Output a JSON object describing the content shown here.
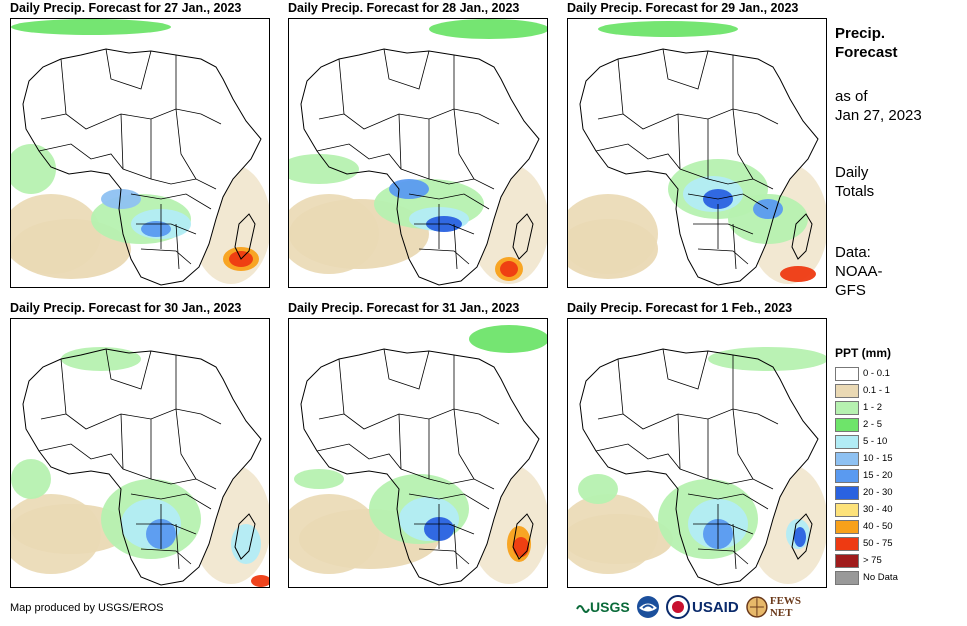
{
  "panels": [
    {
      "title": "Daily Precip. Forecast for 27 Jan., 2023"
    },
    {
      "title": "Daily Precip. Forecast for 28 Jan., 2023"
    },
    {
      "title": "Daily Precip. Forecast for 29 Jan., 2023"
    },
    {
      "title": "Daily Precip. Forecast for 30 Jan., 2023"
    },
    {
      "title": "Daily Precip. Forecast for 31 Jan., 2023"
    },
    {
      "title": "Daily Precip. Forecast for 1 Feb., 2023"
    }
  ],
  "side": {
    "title_line1": "Precip.",
    "title_line2": "Forecast",
    "asof_line1": "as of",
    "asof_line2": "Jan 27, 2023",
    "totals_line1": "Daily",
    "totals_line2": "Totals",
    "data_line1": "Data:",
    "data_line2": "NOAA-",
    "data_line3": "GFS"
  },
  "legend": {
    "title": "PPT (mm)",
    "items": [
      {
        "label": "0 - 0.1",
        "color": "#ffffff"
      },
      {
        "label": "0.1 - 1",
        "color": "#ead9b4"
      },
      {
        "label": "1 - 2",
        "color": "#b6f1b0"
      },
      {
        "label": "2 - 5",
        "color": "#6ee46a"
      },
      {
        "label": "5 - 10",
        "color": "#b2ecf5"
      },
      {
        "label": "10 - 15",
        "color": "#8ec1f2"
      },
      {
        "label": "15 - 20",
        "color": "#5a9af0"
      },
      {
        "label": "20 - 30",
        "color": "#2a62e0"
      },
      {
        "label": "30 - 40",
        "color": "#fde27a"
      },
      {
        "label": "40 - 50",
        "color": "#f8a11a"
      },
      {
        "label": "50 - 75",
        "color": "#ee3a12"
      },
      {
        "label": "> 75",
        "color": "#a01c1c"
      },
      {
        "label": "No Data",
        "color": "#999999"
      }
    ]
  },
  "footer": {
    "credit": "Map produced by USGS/EROS",
    "logos": [
      {
        "name": "usgs-logo",
        "text": "USGS"
      },
      {
        "name": "noaa-logo",
        "text": "NOAA"
      },
      {
        "name": "usaid-logo",
        "text": "USAID"
      },
      {
        "name": "fews-net-logo",
        "text": "FEWS NET"
      }
    ]
  }
}
